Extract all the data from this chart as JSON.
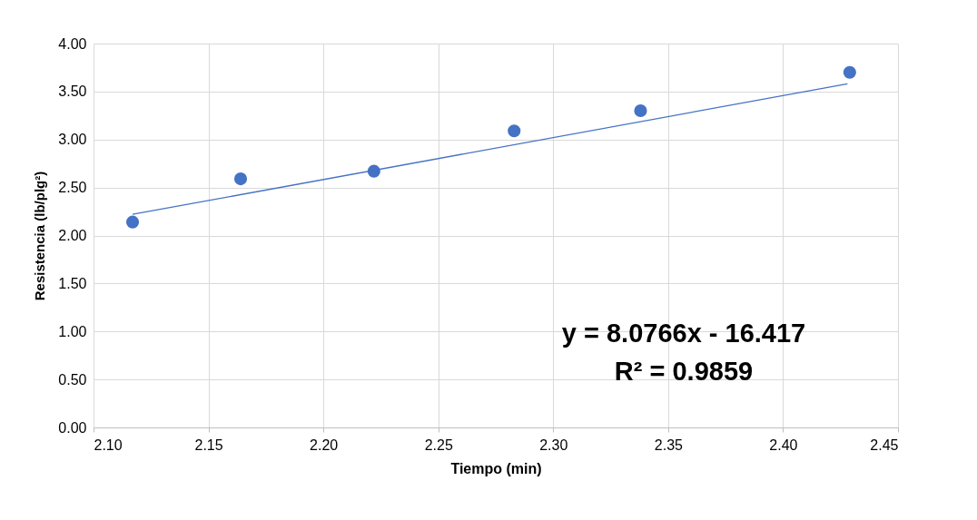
{
  "chart_data": {
    "type": "scatter",
    "xlabel": "Tiempo (min)",
    "ylabel": "Resistencia (lb/plg²)",
    "xlim": [
      2.1,
      2.45
    ],
    "xticks": [
      {
        "value": 2.1,
        "label": "2.10"
      },
      {
        "value": 2.15,
        "label": "2.15"
      },
      {
        "value": 2.2,
        "label": "2.20"
      },
      {
        "value": 2.25,
        "label": "2.25"
      },
      {
        "value": 2.3,
        "label": "2.30"
      },
      {
        "value": 2.35,
        "label": "2.35"
      },
      {
        "value": 2.4,
        "label": "2.40"
      },
      {
        "value": 2.45,
        "label": "2.45"
      }
    ],
    "ylim": [
      0,
      4
    ],
    "yticks": [
      {
        "value": 0,
        "label": "0.00"
      },
      {
        "value": 0.5,
        "label": "0.50"
      },
      {
        "value": 1,
        "label": "1.00"
      },
      {
        "value": 1.5,
        "label": "1.50"
      },
      {
        "value": 2,
        "label": "2.00"
      },
      {
        "value": 2.5,
        "label": "2.50"
      },
      {
        "value": 3,
        "label": "3.00"
      },
      {
        "value": 3.5,
        "label": "3.50"
      },
      {
        "value": 4,
        "label": "4.00"
      }
    ],
    "grid": true,
    "series": [
      {
        "marker": "circle",
        "color": "#4472c4",
        "x": [
          2.117,
          2.164,
          2.222,
          2.283,
          2.338,
          2.429
        ],
        "values": [
          2.14,
          2.59,
          2.67,
          3.09,
          3.3,
          3.7
        ]
      },
      {
        "type": "line",
        "marker": "none",
        "color": "#4472c4",
        "x": [
          2.117,
          2.428
        ],
        "values": [
          2.22,
          3.58
        ]
      }
    ],
    "annotations": [
      "y = 8.0766x - 16.417",
      "R² = 0.9859"
    ]
  }
}
